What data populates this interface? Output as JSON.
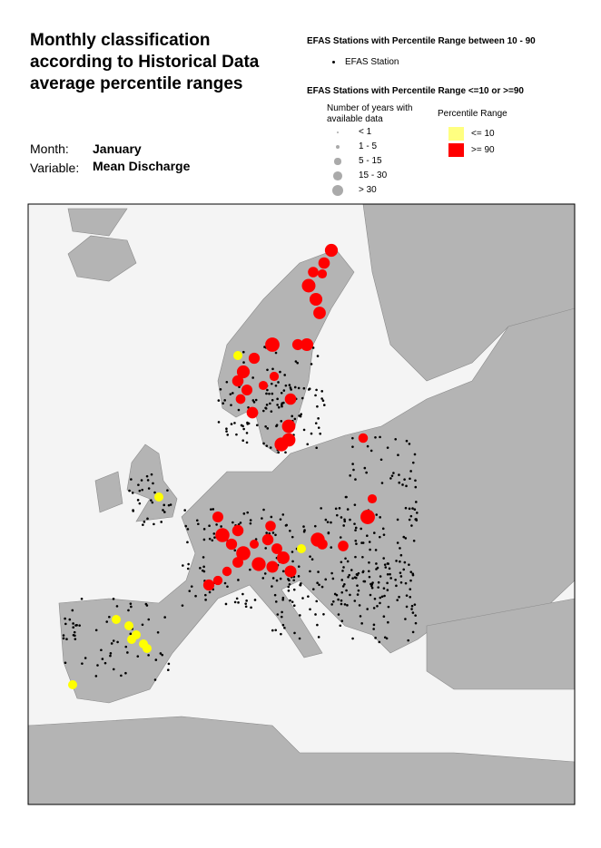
{
  "header": {
    "title": "Monthly classification according to Historical Data average percentile ranges",
    "month_label": "Month:",
    "month": "January",
    "variable_label": "Variable:",
    "variable": "Mean Discharge"
  },
  "legend": {
    "normal_title": "EFAS Stations with Percentile Range between 10 - 90",
    "normal_item": "EFAS Station",
    "extreme_title": "EFAS Stations with Percentile Range <=10 or >=90",
    "years_title": "Number of years with available data",
    "years_items": [
      "< 1",
      "1 - 5",
      "5 - 15",
      "15 - 30",
      "> 30"
    ],
    "percentile_title": "Percentile Range",
    "percentile_items": [
      "<= 10",
      ">= 90"
    ]
  }
}
